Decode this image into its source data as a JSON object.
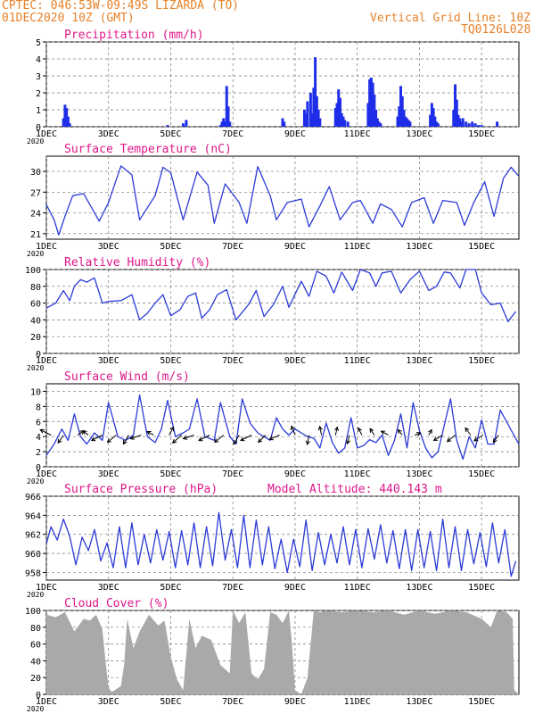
{
  "header": {
    "line1": "CPTEC:   046:53W-09:49S   LIZARDA (TO)",
    "line2": "01DEC2020 10Z (GMT)",
    "right1": "Vertical Grid Line: 10Z",
    "right2": "TQ0126L028"
  },
  "colors": {
    "line": "#2b3bd6",
    "bar": "#1e2ee8",
    "cloud": "#a9a9a9",
    "title": "#e0178a",
    "header": "#e8822a",
    "grid": "#777777"
  },
  "x_axis": {
    "labels": [
      "1DEC",
      "3DEC",
      "5DEC",
      "7DEC",
      "9DEC",
      "11DEC",
      "13DEC",
      "15DEC"
    ],
    "label_days": [
      1,
      3,
      5,
      7,
      9,
      11,
      13,
      15
    ],
    "sub_label": "2020",
    "day_range": [
      1.0,
      16.2
    ]
  },
  "chart_data": [
    {
      "type": "bar",
      "title": "Precipitation (mm/h)",
      "ylim": [
        0,
        5
      ],
      "yticks": [
        0,
        1,
        2,
        3,
        4,
        5
      ],
      "x": [
        1.55,
        1.6,
        1.65,
        1.7,
        1.75,
        4.9,
        5.4,
        5.5,
        6.6,
        6.65,
        6.7,
        6.75,
        6.8,
        6.85,
        6.9,
        8.6,
        8.65,
        9.3,
        9.35,
        9.4,
        9.5,
        9.55,
        9.6,
        9.65,
        9.7,
        9.75,
        9.8,
        10.3,
        10.35,
        10.4,
        10.45,
        10.5,
        10.55,
        10.6,
        10.7,
        11.35,
        11.4,
        11.45,
        11.5,
        11.55,
        11.6,
        11.65,
        11.7,
        11.75,
        12.3,
        12.35,
        12.4,
        12.45,
        12.5,
        12.55,
        12.6,
        12.65,
        12.7,
        13.35,
        13.4,
        13.45,
        13.5,
        13.55,
        13.6,
        14.1,
        14.15,
        14.2,
        14.25,
        14.3,
        14.35,
        14.4,
        14.5,
        14.6,
        14.7,
        14.8,
        14.9,
        15.0,
        15.5
      ],
      "values": [
        0.5,
        1.3,
        1.1,
        0.6,
        0.2,
        0.1,
        0.2,
        0.4,
        0.1,
        0.3,
        0.5,
        0.3,
        2.4,
        1.2,
        0.3,
        0.5,
        0.3,
        1.0,
        0.8,
        1.5,
        2.0,
        0.8,
        2.3,
        4.1,
        1.8,
        1.0,
        0.5,
        1.1,
        1.4,
        2.2,
        1.7,
        0.8,
        0.6,
        0.4,
        0.3,
        1.4,
        2.8,
        2.9,
        2.6,
        1.9,
        1.0,
        0.5,
        0.3,
        0.2,
        0.6,
        1.2,
        2.4,
        1.8,
        1.0,
        0.6,
        0.5,
        0.4,
        0.3,
        0.7,
        1.4,
        1.1,
        0.6,
        0.3,
        0.2,
        1.0,
        2.5,
        1.6,
        0.7,
        0.5,
        0.3,
        0.5,
        0.3,
        0.2,
        0.3,
        0.2,
        0.1,
        0.1,
        0.3
      ]
    },
    {
      "type": "line",
      "title": "Surface Temperature (nC)",
      "ylim": [
        20.2,
        32.2
      ],
      "yticks": [
        21,
        24,
        27,
        30
      ],
      "x": [
        1.0,
        1.25,
        1.4,
        1.6,
        1.85,
        2.2,
        2.7,
        3.0,
        3.4,
        3.75,
        4.0,
        4.5,
        4.75,
        5.0,
        5.4,
        5.85,
        6.2,
        6.4,
        6.75,
        7.2,
        7.45,
        7.8,
        8.2,
        8.4,
        8.75,
        9.2,
        9.45,
        9.8,
        10.1,
        10.45,
        10.85,
        11.1,
        11.5,
        11.75,
        12.1,
        12.45,
        12.75,
        13.15,
        13.45,
        13.75,
        14.2,
        14.45,
        14.75,
        15.1,
        15.4,
        15.7,
        15.95,
        16.2
      ],
      "values": [
        25.2,
        23.0,
        20.8,
        23.5,
        26.5,
        26.8,
        22.8,
        25.5,
        30.8,
        29.5,
        23.0,
        26.5,
        30.6,
        29.8,
        23.0,
        29.9,
        28.0,
        22.5,
        28.2,
        25.5,
        22.5,
        30.7,
        26.5,
        23.0,
        25.5,
        26.0,
        22.0,
        25.0,
        27.8,
        23.0,
        25.5,
        25.8,
        22.5,
        25.3,
        24.5,
        22.0,
        25.5,
        26.2,
        22.5,
        25.8,
        25.5,
        22.2,
        25.5,
        28.5,
        23.5,
        29.0,
        30.6,
        29.3
      ]
    },
    {
      "type": "line",
      "title": "Relative Humidity (%)",
      "ylim": [
        0,
        100
      ],
      "yticks": [
        0,
        20,
        40,
        60,
        80,
        100
      ],
      "x": [
        1.0,
        1.3,
        1.55,
        1.75,
        1.9,
        2.1,
        2.3,
        2.55,
        2.8,
        3.0,
        3.4,
        3.75,
        4.0,
        4.25,
        4.5,
        4.75,
        5.0,
        5.3,
        5.55,
        5.8,
        6.0,
        6.25,
        6.5,
        6.8,
        7.1,
        7.5,
        7.75,
        8.0,
        8.3,
        8.6,
        8.8,
        9.2,
        9.45,
        9.7,
        10.0,
        10.25,
        10.5,
        10.85,
        11.1,
        11.4,
        11.6,
        11.8,
        12.1,
        12.4,
        12.7,
        13.0,
        13.3,
        13.55,
        13.8,
        14.0,
        14.3,
        14.5,
        14.8,
        15.0,
        15.3,
        15.6,
        15.85,
        16.1
      ],
      "values": [
        54,
        60,
        75,
        63,
        80,
        88,
        85,
        90,
        60,
        62,
        63,
        70,
        40,
        48,
        60,
        70,
        45,
        52,
        68,
        72,
        42,
        52,
        70,
        76,
        40,
        58,
        75,
        44,
        58,
        80,
        55,
        86,
        68,
        98,
        92,
        72,
        97,
        75,
        100,
        96,
        80,
        96,
        98,
        72,
        88,
        98,
        75,
        80,
        97,
        96,
        78,
        100,
        100,
        72,
        58,
        60,
        38,
        50
      ]
    },
    {
      "type": "line",
      "title": "Surface Wind (m/s)",
      "ylim": [
        0,
        11
      ],
      "yticks": [
        0,
        2,
        4,
        6,
        8,
        10
      ],
      "x": [
        1.0,
        1.25,
        1.5,
        1.7,
        1.9,
        2.1,
        2.3,
        2.55,
        2.8,
        3.0,
        3.3,
        3.55,
        3.8,
        4.0,
        4.25,
        4.5,
        4.7,
        4.9,
        5.15,
        5.4,
        5.6,
        5.85,
        6.1,
        6.4,
        6.6,
        6.9,
        7.1,
        7.3,
        7.55,
        7.8,
        8.0,
        8.2,
        8.4,
        8.6,
        8.8,
        9.0,
        9.2,
        9.4,
        9.6,
        9.8,
        10.0,
        10.2,
        10.4,
        10.6,
        10.8,
        11.0,
        11.2,
        11.4,
        11.6,
        11.8,
        12.0,
        12.2,
        12.4,
        12.6,
        12.8,
        13.0,
        13.2,
        13.4,
        13.6,
        13.8,
        14.0,
        14.2,
        14.4,
        14.6,
        14.8,
        15.0,
        15.2,
        15.4,
        15.6,
        15.8,
        16.0,
        16.2
      ],
      "values": [
        1.5,
        3.0,
        5.0,
        3.5,
        7.0,
        4.0,
        3.0,
        4.5,
        3.5,
        8.5,
        4.0,
        3.5,
        4.2,
        9.5,
        4.0,
        3.2,
        5.0,
        8.8,
        4.0,
        4.5,
        5.0,
        9.0,
        4.0,
        3.5,
        8.5,
        4.0,
        3.0,
        9.0,
        5.8,
        4.5,
        4.0,
        3.5,
        6.5,
        5.0,
        4.2,
        5.0,
        4.5,
        4.0,
        3.8,
        2.5,
        5.8,
        3.2,
        1.8,
        2.5,
        6.5,
        2.5,
        2.8,
        3.6,
        3.2,
        4.2,
        1.5,
        3.5,
        7.0,
        2.5,
        8.5,
        4.8,
        2.5,
        1.2,
        2.0,
        5.5,
        9.0,
        3.5,
        1.0,
        4.0,
        2.5,
        6.2,
        3.0,
        3.0,
        7.5,
        6.0,
        4.5,
        3.0
      ]
    },
    {
      "type": "line",
      "title": "Surface Pressure (hPa)",
      "annotation": "Model Altitude: 440.143  m",
      "ylim": [
        957.2,
        966
      ],
      "yticks": [
        958,
        960,
        962,
        964,
        966
      ],
      "x": [
        1.0,
        1.15,
        1.35,
        1.55,
        1.75,
        1.95,
        2.15,
        2.35,
        2.55,
        2.75,
        2.95,
        3.15,
        3.35,
        3.55,
        3.75,
        3.95,
        4.15,
        4.35,
        4.55,
        4.75,
        4.95,
        5.15,
        5.35,
        5.55,
        5.75,
        5.95,
        6.15,
        6.35,
        6.55,
        6.75,
        6.95,
        7.15,
        7.35,
        7.55,
        7.75,
        7.95,
        8.15,
        8.35,
        8.55,
        8.75,
        8.95,
        9.15,
        9.35,
        9.55,
        9.75,
        9.95,
        10.15,
        10.35,
        10.55,
        10.75,
        10.95,
        11.15,
        11.35,
        11.55,
        11.75,
        11.95,
        12.15,
        12.35,
        12.55,
        12.75,
        12.95,
        13.15,
        13.35,
        13.55,
        13.75,
        13.95,
        14.15,
        14.35,
        14.55,
        14.75,
        14.95,
        15.15,
        15.35,
        15.55,
        15.75,
        15.95,
        16.1
      ],
      "values": [
        961.0,
        962.8,
        961.4,
        963.6,
        961.8,
        958.8,
        961.7,
        960.3,
        962.5,
        959.2,
        961.1,
        958.5,
        962.8,
        958.5,
        963.2,
        958.8,
        962.0,
        959.0,
        962.5,
        959.3,
        962.3,
        958.5,
        962.4,
        958.8,
        963.2,
        958.5,
        962.8,
        958.7,
        964.3,
        959.3,
        962.5,
        958.5,
        964.0,
        958.5,
        963.5,
        958.8,
        962.8,
        958.4,
        961.5,
        958.0,
        961.5,
        958.6,
        963.5,
        958.2,
        962.2,
        958.8,
        962.0,
        959.0,
        962.8,
        958.8,
        962.5,
        958.5,
        962.6,
        959.4,
        963.0,
        959.0,
        962.4,
        958.4,
        962.5,
        958.2,
        962.5,
        958.5,
        962.3,
        958.2,
        963.6,
        958.5,
        962.8,
        958.2,
        962.5,
        958.9,
        962.2,
        958.6,
        963.2,
        959.0,
        962.5,
        957.6,
        959.2
      ]
    },
    {
      "type": "area",
      "title": "Cloud Cover (%)",
      "ylim": [
        0,
        100
      ],
      "yticks": [
        0,
        20,
        40,
        60,
        80,
        100
      ],
      "x": [
        1.0,
        1.3,
        1.6,
        1.9,
        2.2,
        2.4,
        2.6,
        2.8,
        2.9,
        3.0,
        3.1,
        3.2,
        3.4,
        3.5,
        3.6,
        3.8,
        4.0,
        4.3,
        4.6,
        4.8,
        5.0,
        5.2,
        5.4,
        5.6,
        5.8,
        6.0,
        6.3,
        6.6,
        6.9,
        7.0,
        7.2,
        7.4,
        7.6,
        7.8,
        8.0,
        8.2,
        8.4,
        8.6,
        8.8,
        8.9,
        9.0,
        9.2,
        9.4,
        9.6,
        9.8,
        10.0,
        10.5,
        11.0,
        11.5,
        12.0,
        12.5,
        13.0,
        13.5,
        14.0,
        14.5,
        15.0,
        15.3,
        15.5,
        15.8,
        16.0,
        16.05,
        16.2
      ],
      "values": [
        95,
        92,
        98,
        75,
        90,
        88,
        95,
        78,
        40,
        8,
        3,
        5,
        10,
        35,
        90,
        55,
        75,
        95,
        82,
        88,
        45,
        18,
        5,
        90,
        55,
        70,
        65,
        35,
        25,
        100,
        85,
        98,
        25,
        18,
        30,
        98,
        95,
        85,
        100,
        60,
        5,
        0,
        20,
        100,
        98,
        100,
        98,
        100,
        98,
        100,
        95,
        100,
        96,
        100,
        98,
        90,
        80,
        100,
        98,
        90,
        5,
        0
      ]
    }
  ],
  "wind_vectors": {
    "x": [
      1.15,
      1.55,
      2.0,
      2.35,
      2.8,
      3.25,
      3.65,
      4.05,
      4.45,
      4.95,
      5.35,
      5.75,
      6.25,
      6.7,
      7.2,
      7.6,
      8.05,
      8.5,
      9.0,
      9.45,
      9.85,
      10.3,
      10.75,
      11.15,
      11.55,
      12.0,
      12.45,
      12.85,
      13.3,
      13.75,
      14.15,
      14.65,
      15.05,
      15.55
    ],
    "u": [
      -3,
      -1.5,
      1.8,
      -1.5,
      -3,
      -2.5,
      -1.5,
      -3,
      -1.8,
      1.2,
      -2.5,
      -3,
      -3,
      -2.5,
      -1.5,
      -3,
      -2,
      -2.8,
      -1,
      -0.5,
      -0.5,
      0.5,
      -0.6,
      -1,
      -1.2,
      -2,
      -1.2,
      1.6,
      0.8,
      -2.5,
      -2.2,
      -1.5,
      -2.5,
      -1.5
    ],
    "v": [
      1.5,
      -2.2,
      1.2,
      1.2,
      -1.5,
      -2,
      -2.5,
      -1,
      1,
      2.2,
      -2.2,
      -1,
      -1.5,
      -2,
      -2.5,
      -1.5,
      -2,
      -1.2,
      2.5,
      -2.6,
      2.4,
      2.2,
      -2.4,
      2,
      1.8,
      1.1,
      1.5,
      0.6,
      1.5,
      -1.5,
      -1.8,
      2,
      -1.6,
      -2
    ]
  }
}
